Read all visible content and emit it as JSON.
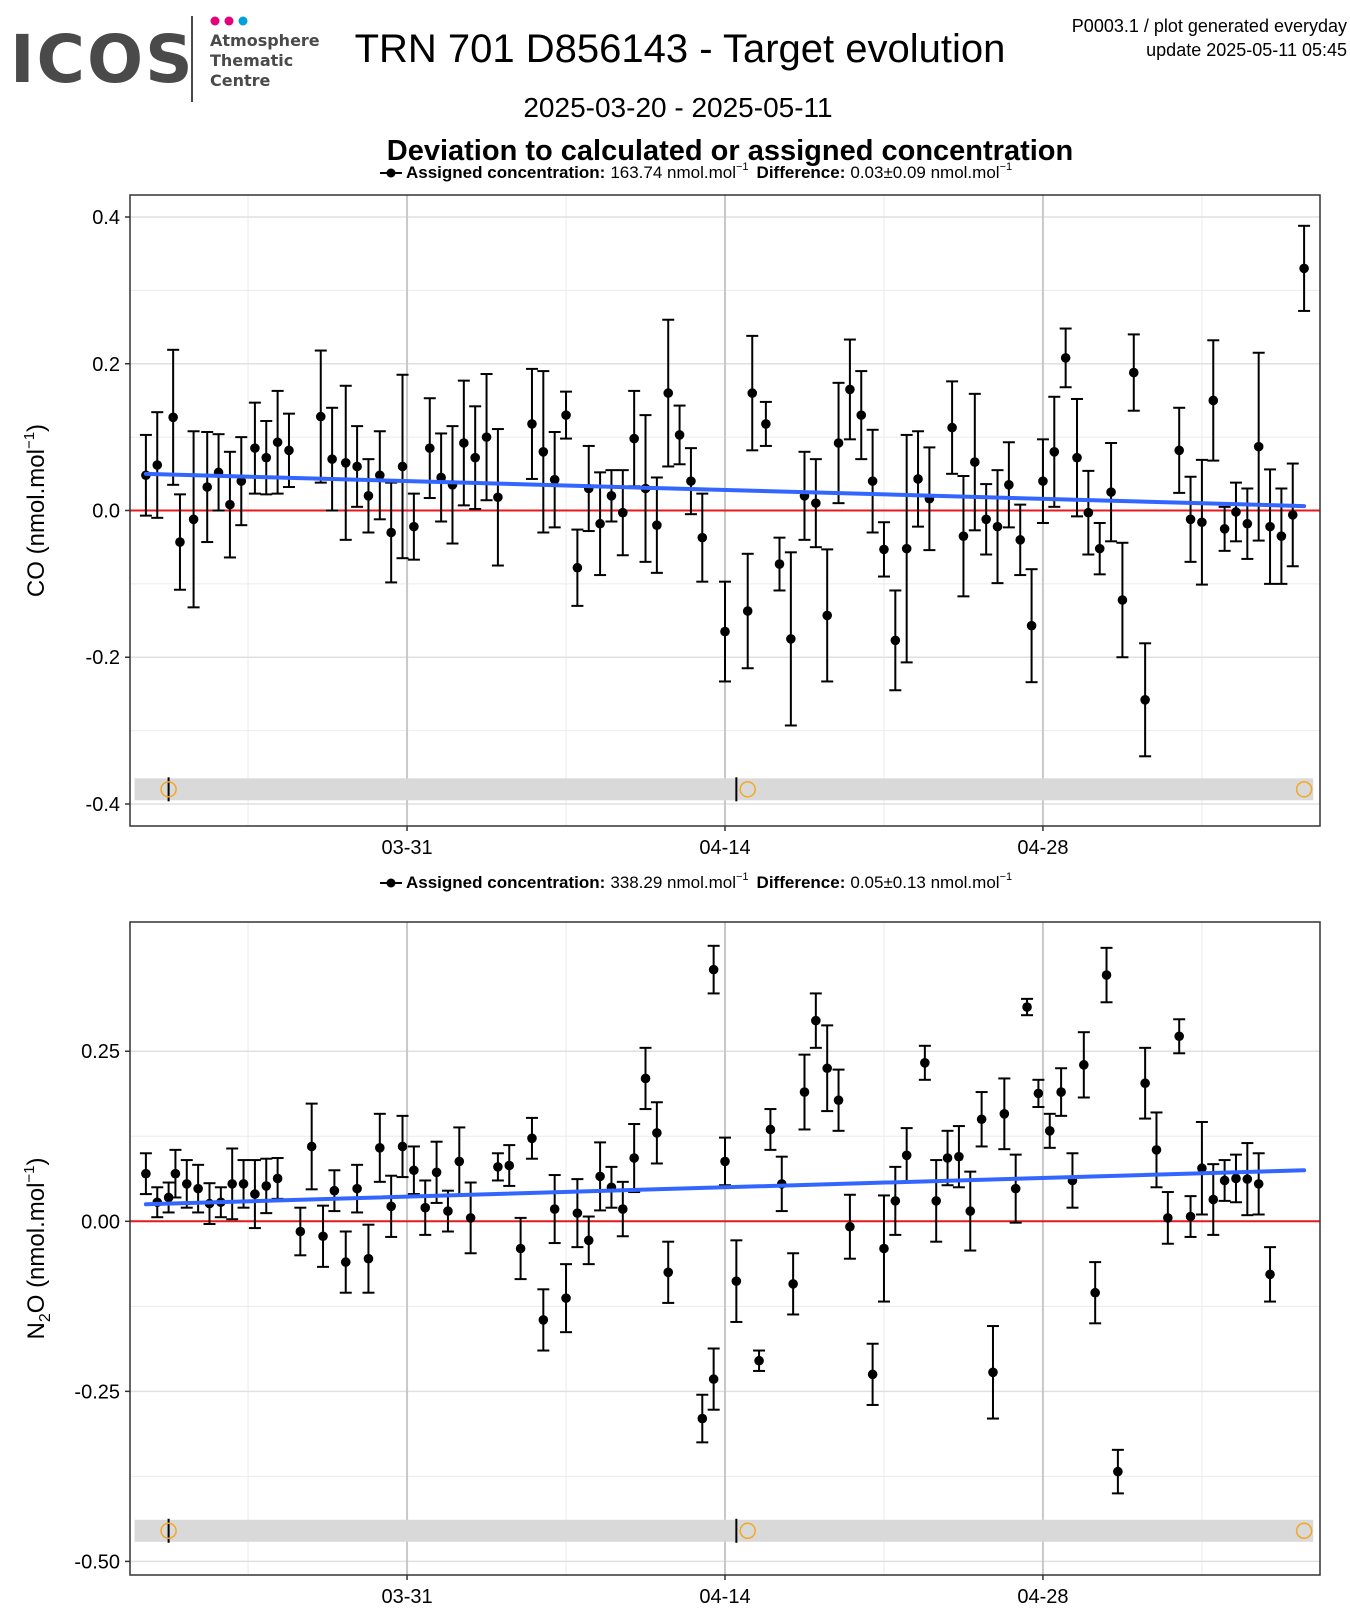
{
  "header": {
    "logo_text": "ICOS",
    "logo_sub": [
      "Atmosphere",
      "Thematic",
      "Centre"
    ],
    "logo_dot_colors": [
      "#e6007e",
      "#e6007e",
      "#00a0e0"
    ],
    "title": "TRN 701 D856143 - Target evolution",
    "date_range": "2025-03-20 - 2025-05-11",
    "subtitle": "Deviation to calculated or assigned concentration",
    "meta_line1": "P0003.1 / plot generated everyday",
    "meta_line2": "update  2025-05-11 05:45"
  },
  "colors": {
    "points": "#000000",
    "trend": "#3366ff",
    "zero_line": "#e41a1c",
    "marker_ring": "#f5a623",
    "strip": "#d9d9d9",
    "grid": "#ebebeb"
  },
  "chart_data": [
    {
      "type": "scatter",
      "legend": {
        "assigned_label": "Assigned concentration:",
        "assigned_value": "163.74 nmol.mol",
        "diff_label": "Difference:",
        "diff_value": "0.03±0.09 nmol.mol"
      },
      "ylabel": "CO (nmol.mol",
      "ylabel_sup": "−1",
      "ylabel_end": ")",
      "ylim": [
        -0.43,
        0.43
      ],
      "yticks": [
        -0.4,
        -0.2,
        0.0,
        0.2,
        0.4
      ],
      "ytick_labels": [
        "-0.4",
        "-0.2",
        "0.0",
        "0.2",
        "0.4"
      ],
      "xlim_days": [
        -1.2,
        51.2
      ],
      "xticks": [
        {
          "label": "03-31",
          "day": 11
        },
        {
          "label": "04-14",
          "day": 25
        },
        {
          "label": "04-28",
          "day": 39
        }
      ],
      "trend": [
        [
          -0.5,
          0.05
        ],
        [
          50.5,
          0.006
        ]
      ],
      "strip_y": -0.38,
      "rings": [
        0.5,
        26.0,
        50.5
      ],
      "strip_ticks": [
        0.5,
        25.5
      ],
      "points": [
        [
          -0.5,
          0.048,
          0.055
        ],
        [
          0.0,
          0.062,
          0.072
        ],
        [
          0.7,
          0.127,
          0.092
        ],
        [
          1.0,
          -0.043,
          0.065
        ],
        [
          1.6,
          -0.012,
          0.12
        ],
        [
          2.2,
          0.032,
          0.075
        ],
        [
          2.7,
          0.052,
          0.052
        ],
        [
          3.2,
          0.008,
          0.072
        ],
        [
          3.7,
          0.04,
          0.06
        ],
        [
          4.3,
          0.085,
          0.062
        ],
        [
          4.8,
          0.072,
          0.05
        ],
        [
          5.3,
          0.093,
          0.07
        ],
        [
          5.8,
          0.082,
          0.05
        ],
        [
          7.2,
          0.128,
          0.09
        ],
        [
          7.7,
          0.07,
          0.07
        ],
        [
          8.3,
          0.065,
          0.105
        ],
        [
          8.8,
          0.06,
          0.055
        ],
        [
          9.3,
          0.02,
          0.05
        ],
        [
          9.8,
          0.048,
          0.06
        ],
        [
          10.3,
          -0.03,
          0.068
        ],
        [
          10.8,
          0.06,
          0.125
        ],
        [
          11.3,
          -0.022,
          0.045
        ],
        [
          12.0,
          0.085,
          0.068
        ],
        [
          12.5,
          0.045,
          0.06
        ],
        [
          13.0,
          0.035,
          0.08
        ],
        [
          13.5,
          0.092,
          0.085
        ],
        [
          14.0,
          0.072,
          0.07
        ],
        [
          14.5,
          0.1,
          0.086
        ],
        [
          15.0,
          0.018,
          0.093
        ],
        [
          16.5,
          0.118,
          0.075
        ],
        [
          17.0,
          0.08,
          0.11
        ],
        [
          17.5,
          0.042,
          0.065
        ],
        [
          18.0,
          0.13,
          0.032
        ],
        [
          18.5,
          -0.078,
          0.052
        ],
        [
          19.0,
          0.03,
          0.058
        ],
        [
          19.5,
          -0.018,
          0.07
        ],
        [
          20.0,
          0.02,
          0.035
        ],
        [
          20.5,
          -0.003,
          0.058
        ],
        [
          21.0,
          0.098,
          0.065
        ],
        [
          21.5,
          0.03,
          0.1
        ],
        [
          22.0,
          -0.02,
          0.065
        ],
        [
          22.5,
          0.16,
          0.1
        ],
        [
          23.0,
          0.103,
          0.04
        ],
        [
          23.5,
          0.04,
          0.045
        ],
        [
          24.0,
          -0.037,
          0.06
        ],
        [
          25.0,
          -0.165,
          0.068
        ],
        [
          26.0,
          -0.137,
          0.078
        ],
        [
          26.2,
          0.16,
          0.078
        ],
        [
          26.8,
          0.118,
          0.03
        ],
        [
          27.4,
          -0.073,
          0.036
        ],
        [
          27.9,
          -0.175,
          0.118
        ],
        [
          28.5,
          0.02,
          0.06
        ],
        [
          29.0,
          0.01,
          0.06
        ],
        [
          29.5,
          -0.143,
          0.09
        ],
        [
          30.0,
          0.092,
          0.082
        ],
        [
          30.5,
          0.165,
          0.068
        ],
        [
          31.0,
          0.13,
          0.06
        ],
        [
          31.5,
          0.04,
          0.07
        ],
        [
          32.0,
          -0.053,
          0.037
        ],
        [
          32.5,
          -0.177,
          0.068
        ],
        [
          33.0,
          -0.052,
          0.155
        ],
        [
          33.5,
          0.043,
          0.065
        ],
        [
          34.0,
          0.016,
          0.07
        ],
        [
          35.0,
          0.113,
          0.063
        ],
        [
          35.5,
          -0.035,
          0.082
        ],
        [
          36.0,
          0.066,
          0.093
        ],
        [
          36.5,
          -0.012,
          0.048
        ],
        [
          37.0,
          -0.022,
          0.077
        ],
        [
          37.5,
          0.035,
          0.058
        ],
        [
          38.0,
          -0.04,
          0.048
        ],
        [
          38.5,
          -0.157,
          0.077
        ],
        [
          39.0,
          0.04,
          0.057
        ],
        [
          39.5,
          0.08,
          0.075
        ],
        [
          40.0,
          0.208,
          0.04
        ],
        [
          40.5,
          0.072,
          0.08
        ],
        [
          41.0,
          -0.003,
          0.057
        ],
        [
          41.5,
          -0.052,
          0.035
        ],
        [
          42.0,
          0.025,
          0.067
        ],
        [
          42.5,
          -0.122,
          0.078
        ],
        [
          43.0,
          0.188,
          0.052
        ],
        [
          43.5,
          -0.258,
          0.077
        ],
        [
          45.0,
          0.082,
          0.058
        ],
        [
          45.5,
          -0.012,
          0.058
        ],
        [
          46.0,
          -0.016,
          0.085
        ],
        [
          46.5,
          0.15,
          0.082
        ],
        [
          47.0,
          -0.025,
          0.03
        ],
        [
          47.5,
          -0.002,
          0.04
        ],
        [
          48.0,
          -0.018,
          0.048
        ],
        [
          48.5,
          0.087,
          0.128
        ],
        [
          49.0,
          -0.022,
          0.078
        ],
        [
          49.5,
          -0.035,
          0.065
        ],
        [
          50.0,
          -0.006,
          0.07
        ],
        [
          50.5,
          0.33,
          0.058
        ]
      ]
    },
    {
      "type": "scatter",
      "legend": {
        "assigned_label": "Assigned concentration:",
        "assigned_value": "338.29 nmol.mol",
        "diff_label": "Difference:",
        "diff_value": "0.05±0.13 nmol.mol"
      },
      "ylabel": "N",
      "ylabel_sub": "2",
      "ylabel_rest": "O (nmol.mol",
      "ylabel_sup": "−1",
      "ylabel_end": ")",
      "ylim": [
        -0.52,
        0.44
      ],
      "yticks": [
        -0.5,
        -0.25,
        0.0,
        0.25
      ],
      "ytick_labels": [
        "-0.50",
        "-0.25",
        "0.00",
        "0.25"
      ],
      "xlim_days": [
        -1.2,
        51.2
      ],
      "xticks": [
        {
          "label": "03-31",
          "day": 11
        },
        {
          "label": "04-14",
          "day": 25
        },
        {
          "label": "04-28",
          "day": 39
        }
      ],
      "trend": [
        [
          -0.5,
          0.025
        ],
        [
          50.5,
          0.075
        ]
      ],
      "strip_y": -0.455,
      "rings": [
        0.5,
        26.0,
        50.5
      ],
      "strip_ticks": [
        0.5,
        25.5
      ],
      "points": [
        [
          -0.5,
          0.07,
          0.03
        ],
        [
          0.0,
          0.028,
          0.022
        ],
        [
          0.5,
          0.035,
          0.022
        ],
        [
          0.8,
          0.07,
          0.035
        ],
        [
          1.3,
          0.055,
          0.035
        ],
        [
          1.8,
          0.048,
          0.035
        ],
        [
          2.3,
          0.026,
          0.03
        ],
        [
          2.8,
          0.028,
          0.022
        ],
        [
          3.3,
          0.055,
          0.052
        ],
        [
          3.8,
          0.055,
          0.035
        ],
        [
          4.3,
          0.04,
          0.05
        ],
        [
          4.8,
          0.052,
          0.04
        ],
        [
          5.3,
          0.063,
          0.03
        ],
        [
          6.3,
          -0.015,
          0.035
        ],
        [
          6.8,
          0.11,
          0.063
        ],
        [
          7.3,
          -0.022,
          0.045
        ],
        [
          7.8,
          0.045,
          0.03
        ],
        [
          8.3,
          -0.06,
          0.045
        ],
        [
          8.8,
          0.048,
          0.035
        ],
        [
          9.3,
          -0.055,
          0.05
        ],
        [
          9.8,
          0.108,
          0.05
        ],
        [
          10.3,
          0.022,
          0.045
        ],
        [
          10.8,
          0.11,
          0.045
        ],
        [
          11.3,
          0.075,
          0.035
        ],
        [
          11.8,
          0.02,
          0.04
        ],
        [
          12.3,
          0.072,
          0.045
        ],
        [
          12.8,
          0.015,
          0.03
        ],
        [
          13.3,
          0.088,
          0.05
        ],
        [
          13.8,
          0.005,
          0.052
        ],
        [
          15.0,
          0.08,
          0.02
        ],
        [
          15.5,
          0.082,
          0.03
        ],
        [
          16.0,
          -0.04,
          0.045
        ],
        [
          16.5,
          0.122,
          0.03
        ],
        [
          17.0,
          -0.145,
          0.045
        ],
        [
          17.5,
          0.018,
          0.05
        ],
        [
          18.0,
          -0.113,
          0.05
        ],
        [
          18.5,
          0.012,
          0.05
        ],
        [
          19.0,
          -0.028,
          0.035
        ],
        [
          19.5,
          0.066,
          0.05
        ],
        [
          20.0,
          0.05,
          0.03
        ],
        [
          20.5,
          0.018,
          0.04
        ],
        [
          21.0,
          0.093,
          0.05
        ],
        [
          21.5,
          0.21,
          0.045
        ],
        [
          22.0,
          0.13,
          0.045
        ],
        [
          22.5,
          -0.075,
          0.045
        ],
        [
          24.0,
          -0.29,
          0.035
        ],
        [
          24.5,
          -0.232,
          0.045
        ],
        [
          24.5,
          0.37,
          0.035
        ],
        [
          25.0,
          0.088,
          0.035
        ],
        [
          25.5,
          -0.088,
          0.06
        ],
        [
          26.5,
          -0.205,
          0.015
        ],
        [
          27.0,
          0.135,
          0.03
        ],
        [
          27.5,
          0.055,
          0.04
        ],
        [
          28.0,
          -0.092,
          0.045
        ],
        [
          28.5,
          0.19,
          0.055
        ],
        [
          29.0,
          0.295,
          0.04
        ],
        [
          29.5,
          0.225,
          0.063
        ],
        [
          30.0,
          0.178,
          0.045
        ],
        [
          30.5,
          -0.008,
          0.047
        ],
        [
          31.5,
          -0.225,
          0.045
        ],
        [
          32.0,
          -0.04,
          0.078
        ],
        [
          32.5,
          0.03,
          0.05
        ],
        [
          33.0,
          0.097,
          0.04
        ],
        [
          33.8,
          0.233,
          0.025
        ],
        [
          34.3,
          0.03,
          0.06
        ],
        [
          34.8,
          0.093,
          0.04
        ],
        [
          35.3,
          0.095,
          0.045
        ],
        [
          35.8,
          0.015,
          0.058
        ],
        [
          36.3,
          0.15,
          0.04
        ],
        [
          36.8,
          -0.222,
          0.068
        ],
        [
          37.3,
          0.158,
          0.052
        ],
        [
          37.8,
          0.048,
          0.05
        ],
        [
          38.3,
          0.315,
          0.012
        ],
        [
          38.8,
          0.188,
          0.02
        ],
        [
          39.3,
          0.133,
          0.025
        ],
        [
          39.8,
          0.19,
          0.035
        ],
        [
          40.3,
          0.06,
          0.04
        ],
        [
          40.8,
          0.23,
          0.048
        ],
        [
          41.3,
          -0.105,
          0.045
        ],
        [
          41.8,
          0.362,
          0.04
        ],
        [
          42.3,
          -0.368,
          0.032
        ],
        [
          43.5,
          0.203,
          0.052
        ],
        [
          44.0,
          0.105,
          0.055
        ],
        [
          44.5,
          0.005,
          0.038
        ],
        [
          45.0,
          0.272,
          0.025
        ],
        [
          45.5,
          0.007,
          0.03
        ],
        [
          46.0,
          0.078,
          0.068
        ],
        [
          46.5,
          0.032,
          0.052
        ],
        [
          47.0,
          0.06,
          0.03
        ],
        [
          47.5,
          0.063,
          0.035
        ],
        [
          48.0,
          0.062,
          0.053
        ],
        [
          48.5,
          0.055,
          0.045
        ],
        [
          49.0,
          -0.078,
          0.04
        ]
      ]
    }
  ]
}
